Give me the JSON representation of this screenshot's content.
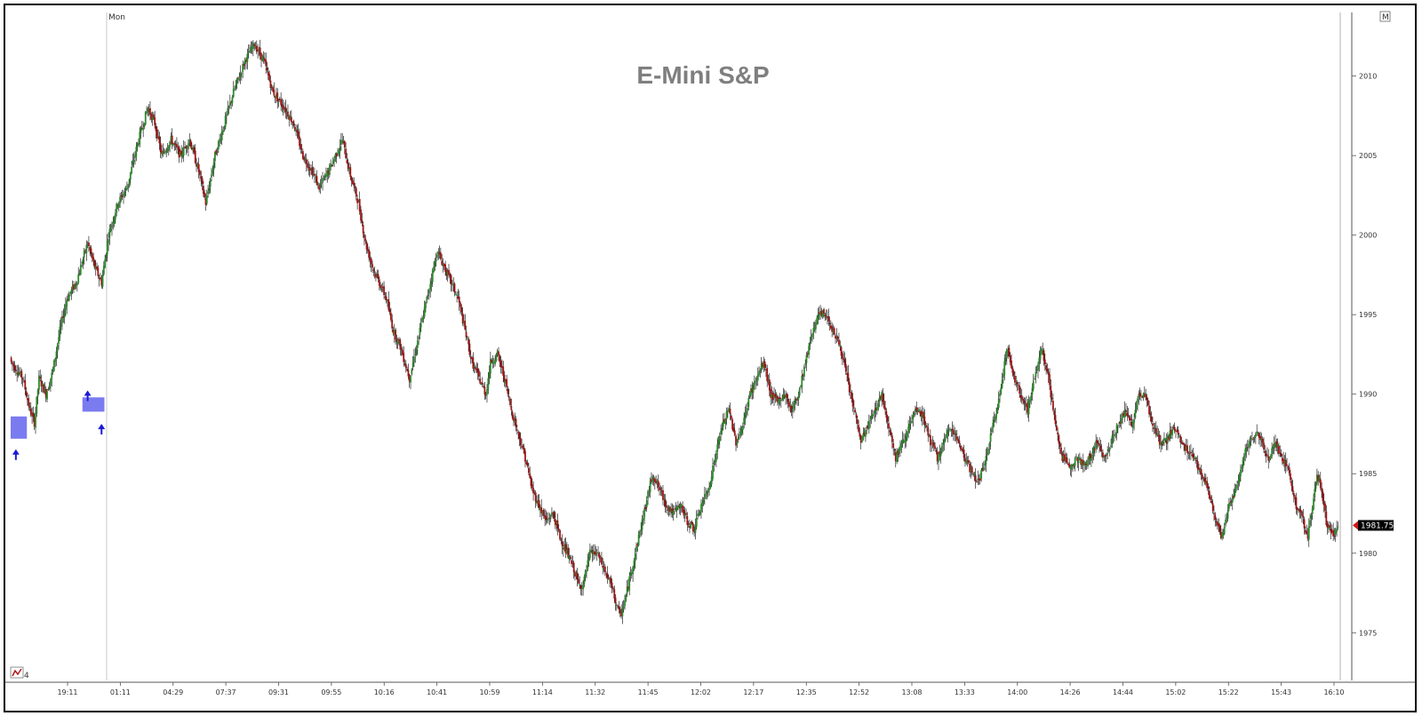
{
  "chart_data": {
    "type": "candlestick",
    "title": "E-Mini S&P",
    "day_label": "Mon",
    "period_label": "4",
    "corner_label": "M",
    "last_price": "1981.75",
    "ylim": [
      1972,
      2014
    ],
    "y_ticks": [
      1975,
      1980,
      1985,
      1990,
      1995,
      2000,
      2005,
      2010
    ],
    "x_tick_labels": [
      "19:11",
      "01:11",
      "04:29",
      "07:37",
      "09:31",
      "09:55",
      "10:16",
      "10:41",
      "10:59",
      "11:14",
      "11:32",
      "11:45",
      "12:02",
      "12:17",
      "12:35",
      "12:52",
      "13:08",
      "13:33",
      "14:00",
      "14:26",
      "14:44",
      "15:02",
      "15:22",
      "15:43",
      "16:10"
    ],
    "price_path": [
      [
        0,
        1992
      ],
      [
        10,
        1991
      ],
      [
        16,
        1989
      ],
      [
        20,
        1988.2
      ],
      [
        24,
        1991
      ],
      [
        30,
        1990
      ],
      [
        36,
        1991.5
      ],
      [
        42,
        1994
      ],
      [
        48,
        1996
      ],
      [
        56,
        1997
      ],
      [
        66,
        1999.5
      ],
      [
        72,
        1998
      ],
      [
        78,
        1997
      ],
      [
        84,
        2000
      ],
      [
        92,
        2002
      ],
      [
        100,
        2003
      ],
      [
        110,
        2006
      ],
      [
        118,
        2008
      ],
      [
        124,
        2007
      ],
      [
        130,
        2005
      ],
      [
        138,
        2006
      ],
      [
        146,
        2005
      ],
      [
        154,
        2006
      ],
      [
        162,
        2004
      ],
      [
        168,
        2002
      ],
      [
        176,
        2005
      ],
      [
        184,
        2007
      ],
      [
        192,
        2009
      ],
      [
        202,
        2011
      ],
      [
        210,
        2012
      ],
      [
        218,
        2011
      ],
      [
        226,
        2009
      ],
      [
        236,
        2008
      ],
      [
        244,
        2007
      ],
      [
        252,
        2005
      ],
      [
        260,
        2004
      ],
      [
        266,
        2003
      ],
      [
        274,
        2004
      ],
      [
        280,
        2005
      ],
      [
        286,
        2006
      ],
      [
        292,
        2004
      ],
      [
        300,
        2002
      ],
      [
        306,
        1999.5
      ],
      [
        312,
        1998
      ],
      [
        318,
        1997
      ],
      [
        324,
        1996
      ],
      [
        330,
        1994
      ],
      [
        336,
        1993
      ],
      [
        340,
        1992
      ],
      [
        344,
        1991
      ],
      [
        350,
        1993
      ],
      [
        356,
        1995
      ],
      [
        362,
        1997
      ],
      [
        368,
        1999
      ],
      [
        374,
        1998
      ],
      [
        380,
        1997
      ],
      [
        386,
        1996
      ],
      [
        392,
        1994
      ],
      [
        398,
        1992
      ],
      [
        404,
        1991
      ],
      [
        410,
        1990
      ],
      [
        414,
        1992
      ],
      [
        420,
        1992.5
      ],
      [
        426,
        1991
      ],
      [
        432,
        1989
      ],
      [
        438,
        1987.5
      ],
      [
        444,
        1986
      ],
      [
        450,
        1984
      ],
      [
        456,
        1983
      ],
      [
        462,
        1982
      ],
      [
        468,
        1982.5
      ],
      [
        474,
        1981
      ],
      [
        480,
        1980
      ],
      [
        486,
        1979
      ],
      [
        490,
        1978
      ],
      [
        494,
        1978
      ],
      [
        500,
        1980
      ],
      [
        506,
        1980
      ],
      [
        512,
        1979
      ],
      [
        518,
        1978
      ],
      [
        522,
        1977
      ],
      [
        526,
        1976
      ],
      [
        530,
        1977
      ],
      [
        536,
        1979
      ],
      [
        542,
        1981
      ],
      [
        548,
        1983
      ],
      [
        554,
        1985
      ],
      [
        560,
        1984
      ],
      [
        566,
        1983
      ],
      [
        572,
        1982.5
      ],
      [
        578,
        1983
      ],
      [
        584,
        1982
      ],
      [
        590,
        1981.5
      ],
      [
        596,
        1983
      ],
      [
        602,
        1984
      ],
      [
        608,
        1986
      ],
      [
        614,
        1988
      ],
      [
        620,
        1989
      ],
      [
        626,
        1987
      ],
      [
        632,
        1988
      ],
      [
        638,
        1990
      ],
      [
        644,
        1991
      ],
      [
        650,
        1992
      ],
      [
        656,
        1990
      ],
      [
        662,
        1989.5
      ],
      [
        668,
        1990
      ],
      [
        674,
        1989
      ],
      [
        680,
        1990
      ],
      [
        686,
        1992
      ],
      [
        692,
        1994
      ],
      [
        698,
        1995
      ],
      [
        704,
        1995
      ],
      [
        710,
        1994
      ],
      [
        716,
        1993
      ],
      [
        722,
        1991
      ],
      [
        728,
        1989
      ],
      [
        734,
        1987
      ],
      [
        740,
        1988
      ],
      [
        746,
        1989
      ],
      [
        752,
        1990
      ],
      [
        758,
        1988
      ],
      [
        764,
        1986
      ],
      [
        770,
        1987
      ],
      [
        776,
        1988
      ],
      [
        782,
        1989
      ],
      [
        788,
        1988.5
      ],
      [
        794,
        1987
      ],
      [
        800,
        1986
      ],
      [
        806,
        1987
      ],
      [
        812,
        1988
      ],
      [
        818,
        1987
      ],
      [
        824,
        1986
      ],
      [
        830,
        1985
      ],
      [
        836,
        1984.5
      ],
      [
        842,
        1986
      ],
      [
        848,
        1988
      ],
      [
        854,
        1990
      ],
      [
        860,
        1993
      ],
      [
        866,
        1991
      ],
      [
        872,
        1990
      ],
      [
        878,
        1989
      ],
      [
        884,
        1991
      ],
      [
        890,
        1993
      ],
      [
        896,
        1991
      ],
      [
        902,
        1988
      ],
      [
        908,
        1986
      ],
      [
        914,
        1985.5
      ],
      [
        920,
        1986
      ],
      [
        926,
        1985.5
      ],
      [
        932,
        1986
      ],
      [
        938,
        1987
      ],
      [
        944,
        1986
      ],
      [
        950,
        1987
      ],
      [
        956,
        1988
      ],
      [
        962,
        1989
      ],
      [
        968,
        1988
      ],
      [
        974,
        1990
      ],
      [
        980,
        1990
      ],
      [
        986,
        1988
      ],
      [
        992,
        1987
      ],
      [
        998,
        1987
      ],
      [
        1004,
        1988
      ],
      [
        1010,
        1987
      ],
      [
        1016,
        1986.5
      ],
      [
        1022,
        1986
      ],
      [
        1028,
        1985
      ],
      [
        1034,
        1984
      ],
      [
        1040,
        1982
      ],
      [
        1046,
        1981
      ],
      [
        1052,
        1983
      ],
      [
        1058,
        1984
      ],
      [
        1064,
        1986
      ],
      [
        1070,
        1987
      ],
      [
        1076,
        1987.5
      ],
      [
        1080,
        1987
      ],
      [
        1086,
        1986
      ],
      [
        1092,
        1987
      ],
      [
        1098,
        1986
      ],
      [
        1104,
        1985
      ],
      [
        1110,
        1983
      ],
      [
        1116,
        1982
      ],
      [
        1120,
        1981
      ],
      [
        1124,
        1983
      ],
      [
        1128,
        1985
      ],
      [
        1132,
        1984
      ],
      [
        1136,
        1982
      ],
      [
        1142,
        1981
      ],
      [
        1146,
        1981.75
      ]
    ],
    "demand_zones": [
      {
        "candle_start": 0,
        "candle_end": 13,
        "low": 1987.2,
        "high": 1988.6
      },
      {
        "candle_start": 62,
        "candle_end": 80,
        "low": 1988.9,
        "high": 1989.8
      }
    ],
    "signal_markers": [
      {
        "candle": 4,
        "price": 1986.2
      },
      {
        "candle": 66,
        "price": 1989.9
      },
      {
        "candle": 78,
        "price": 1987.8
      }
    ],
    "colors": {
      "up_candle": "#2e8b2e",
      "down_candle": "#a01515",
      "wick": "#000000",
      "zone": "#7b7bf0",
      "marker": "#1a1ad6",
      "price_tag": "#000000",
      "price_tag_arrow": "#d01818",
      "title": "#7f7f7f",
      "separator": "#c8c8c8"
    }
  }
}
